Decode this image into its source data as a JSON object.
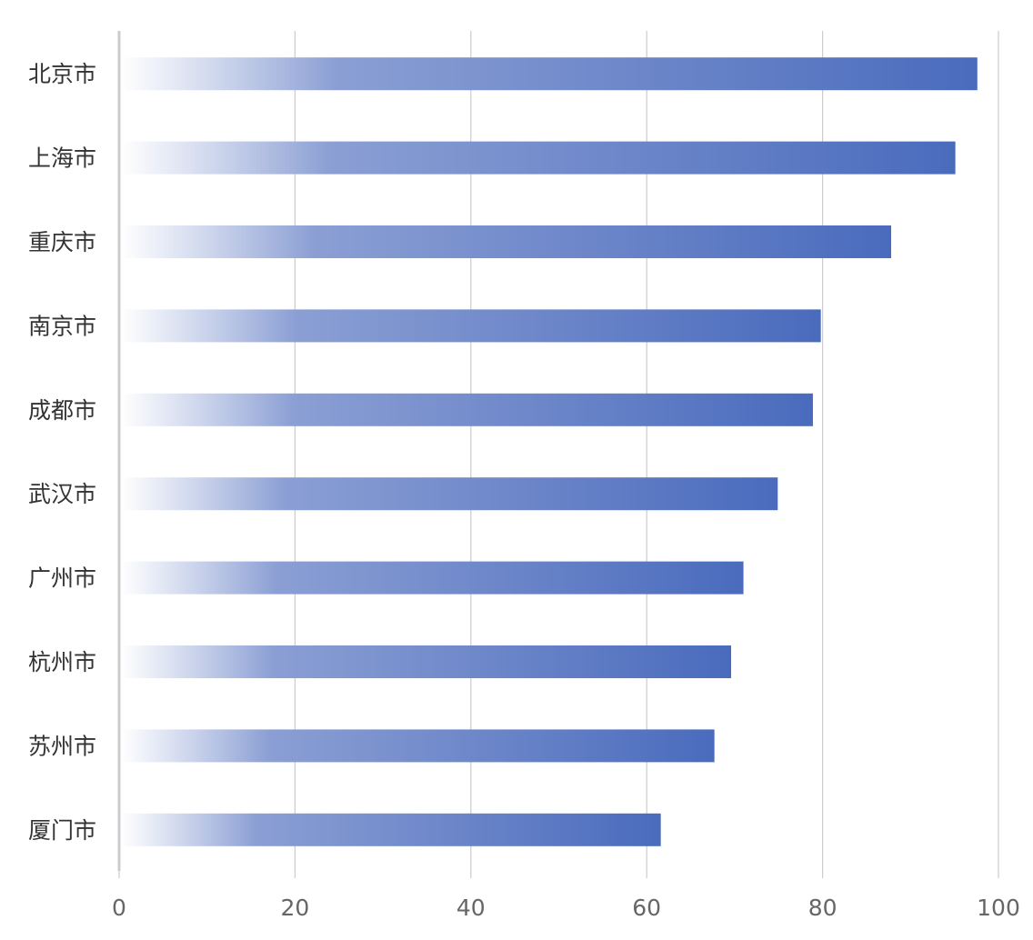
{
  "chart_data": {
    "type": "bar",
    "orientation": "horizontal",
    "categories": [
      "北京市",
      "上海市",
      "重庆市",
      "南京市",
      "成都市",
      "武汉市",
      "广州市",
      "杭州市",
      "苏州市",
      "厦门市"
    ],
    "values": [
      97.6,
      95.1,
      87.8,
      79.8,
      78.9,
      74.9,
      71.0,
      69.6,
      67.7,
      61.6
    ],
    "xlim": [
      0,
      100
    ],
    "x_ticks": [
      0,
      20,
      40,
      60,
      80,
      100
    ],
    "grid": "vertical",
    "legend": "none",
    "colors": {
      "bar_start": "#ffffff",
      "bar_mid": "#8b9fd4",
      "bar_end": "#4a6bbd",
      "grid": "#cccccc",
      "axis": "#cccccc"
    }
  }
}
